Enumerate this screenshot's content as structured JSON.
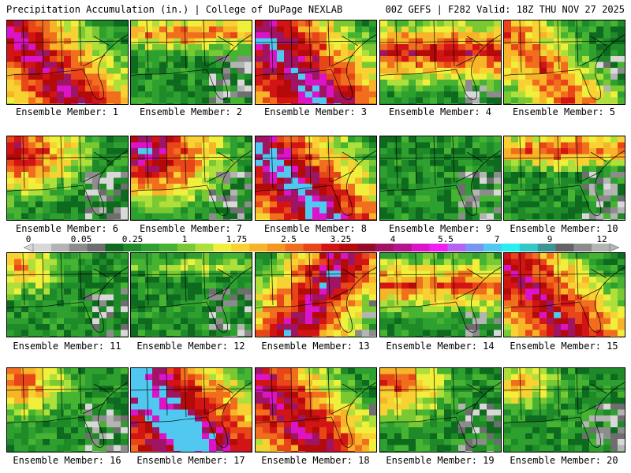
{
  "header": {
    "left": "Precipitation Accumulation (in.) | College of DuPage NEXLAB",
    "right": "00Z GEFS | F282 Valid: 18Z THU NOV 27 2025"
  },
  "member_label_prefix": "Ensemble Member: ",
  "members": [
    {
      "num": "1",
      "intensity": 0.75,
      "band": "west"
    },
    {
      "num": "2",
      "intensity": 0.55,
      "band": "north"
    },
    {
      "num": "3",
      "intensity": 0.85,
      "band": "west"
    },
    {
      "num": "4",
      "intensity": 0.65,
      "band": "broad"
    },
    {
      "num": "5",
      "intensity": 0.55,
      "band": "west"
    },
    {
      "num": "6",
      "intensity": 0.7,
      "band": "northwest"
    },
    {
      "num": "7",
      "intensity": 0.85,
      "band": "northwest"
    },
    {
      "num": "8",
      "intensity": 0.85,
      "band": "west"
    },
    {
      "num": "9",
      "intensity": 0.2,
      "band": "none"
    },
    {
      "num": "10",
      "intensity": 0.6,
      "band": "north"
    },
    {
      "num": "11",
      "intensity": 0.45,
      "band": "northwest"
    },
    {
      "num": "12",
      "intensity": 0.3,
      "band": "north"
    },
    {
      "num": "13",
      "intensity": 0.8,
      "band": "central"
    },
    {
      "num": "14",
      "intensity": 0.55,
      "band": "broad"
    },
    {
      "num": "15",
      "intensity": 0.75,
      "band": "west"
    },
    {
      "num": "16",
      "intensity": 0.55,
      "band": "northwest"
    },
    {
      "num": "17",
      "intensity": 0.95,
      "band": "west"
    },
    {
      "num": "18",
      "intensity": 0.75,
      "band": "west"
    },
    {
      "num": "19",
      "intensity": 0.6,
      "band": "northwest"
    },
    {
      "num": "20",
      "intensity": 0.45,
      "band": "northwest"
    }
  ],
  "colorbar": {
    "colors": [
      "#d8d8d8",
      "#b4b4b4",
      "#8c8c8c",
      "#6e6e6e",
      "#0e6a1e",
      "#1e8a28",
      "#2ea030",
      "#46b432",
      "#7ac832",
      "#aee03c",
      "#f0f03c",
      "#f8d232",
      "#f8b428",
      "#f49620",
      "#f06e1e",
      "#e84618",
      "#d21414",
      "#b40a0a",
      "#960a28",
      "#a01464",
      "#b4148c",
      "#dc14c8",
      "#f01ef0",
      "#b464f0",
      "#7896f0",
      "#50c8f0",
      "#28f0f0",
      "#32c8c8",
      "#3c9696",
      "#646464",
      "#8c8c8c",
      "#b4b4b4"
    ],
    "ticks": [
      "0",
      "0.05",
      "0.25",
      "1",
      "1.75",
      "2.5",
      "3.25",
      "4",
      "5.5",
      "7",
      "9",
      "12"
    ]
  }
}
